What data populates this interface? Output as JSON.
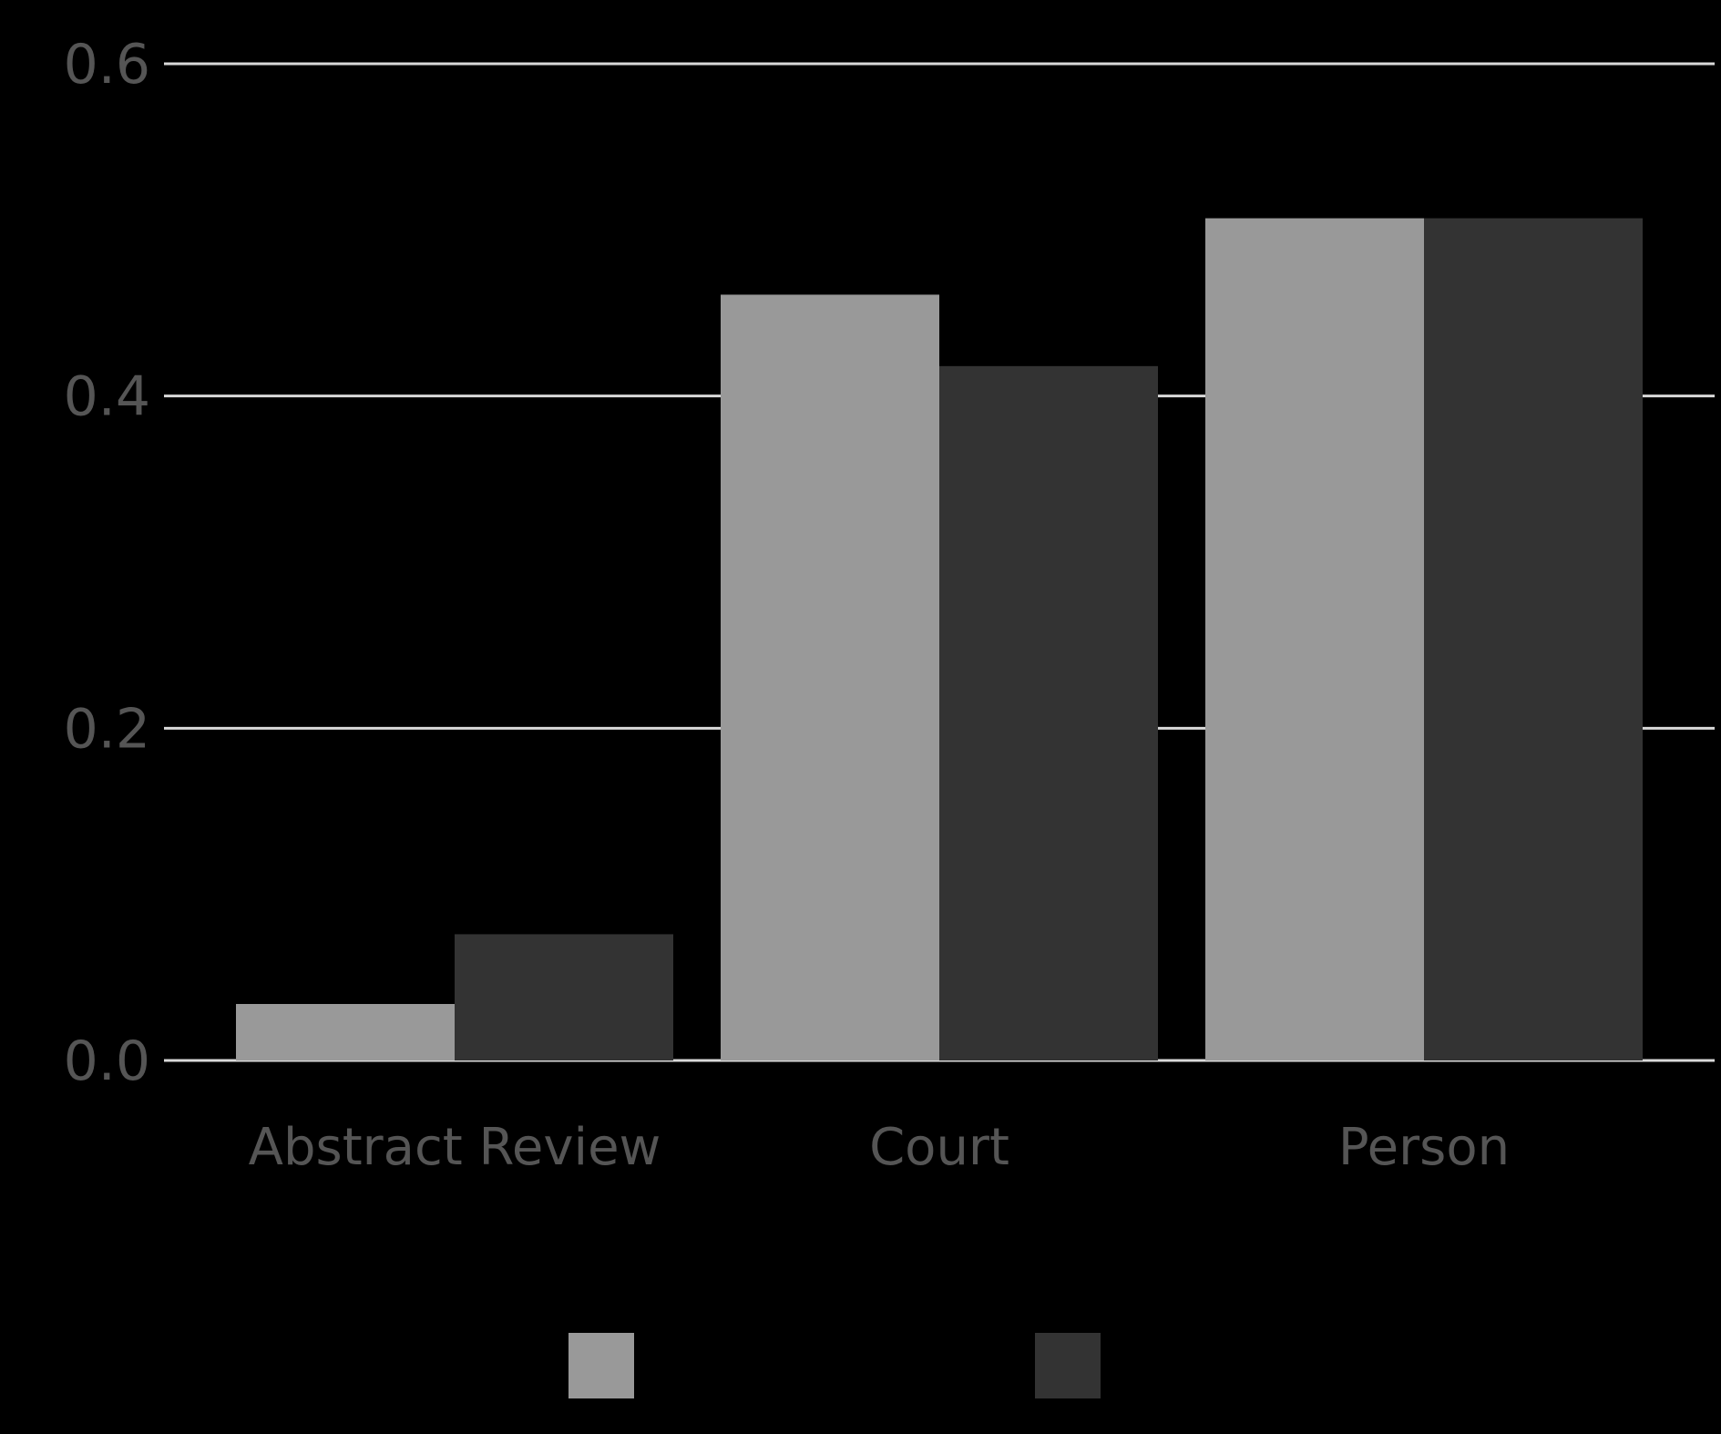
{
  "chart_data": {
    "type": "bar",
    "categories": [
      "Abstract Review",
      "Court",
      "Person"
    ],
    "series": [
      {
        "color": "#999999",
        "values": [
          0.034,
          0.461,
          0.507
        ]
      },
      {
        "color": "#333333",
        "values": [
          0.076,
          0.418,
          0.507
        ]
      }
    ],
    "ylim": [
      0,
      0.6
    ],
    "yticks": [
      "0.0",
      "0.2",
      "0.4",
      "0.6"
    ],
    "ytick_values": [
      0,
      0.2,
      0.4,
      0.6
    ],
    "grid": true,
    "gridline_color": "#d9d9d9",
    "legend_placement": "bottom-center",
    "background": "#000000"
  }
}
